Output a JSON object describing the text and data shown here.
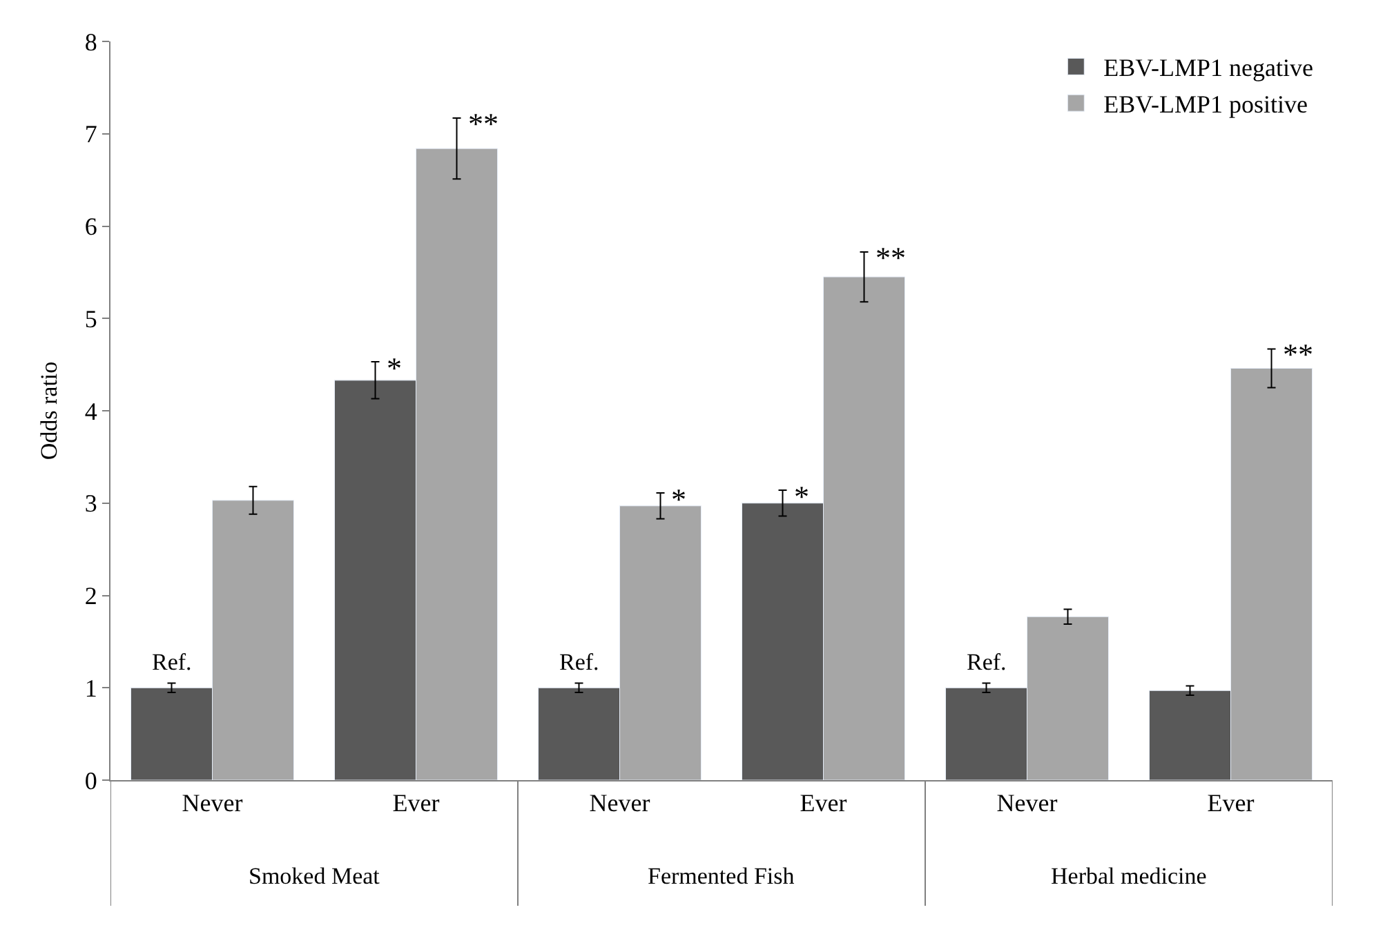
{
  "chart_data": {
    "type": "bar",
    "ylabel": "Odds ratio",
    "categories": [
      "Never",
      "Ever",
      "Never",
      "Ever",
      "Never",
      "Ever"
    ],
    "series": [
      {
        "name": "EBV-LMP1 negative",
        "color": "#595959",
        "values": [
          1.0,
          4.33,
          1.0,
          3.0,
          1.0,
          0.97
        ],
        "errors": [
          0.05,
          0.2,
          0.05,
          0.14,
          0.05,
          0.05
        ],
        "value_labels": [
          "Ref.",
          "*",
          "Ref.",
          "*",
          "Ref.",
          null
        ]
      },
      {
        "name": "EBV-LMP1 positive",
        "color": "#a6a6a6",
        "values": [
          3.03,
          6.84,
          2.97,
          5.45,
          1.77,
          4.46
        ],
        "errors": [
          0.15,
          0.33,
          0.14,
          0.27,
          0.08,
          0.21
        ],
        "value_labels": [
          null,
          "**",
          "*",
          "**",
          null,
          "**"
        ]
      }
    ],
    "annotations": [
      "Smoked Meat",
      "Fermented Fish",
      "Herbal medicine"
    ],
    "ylim": [
      0,
      8
    ],
    "yticks": [
      0,
      1,
      2,
      3,
      4,
      5,
      6,
      7,
      8
    ],
    "legend": "top right"
  }
}
